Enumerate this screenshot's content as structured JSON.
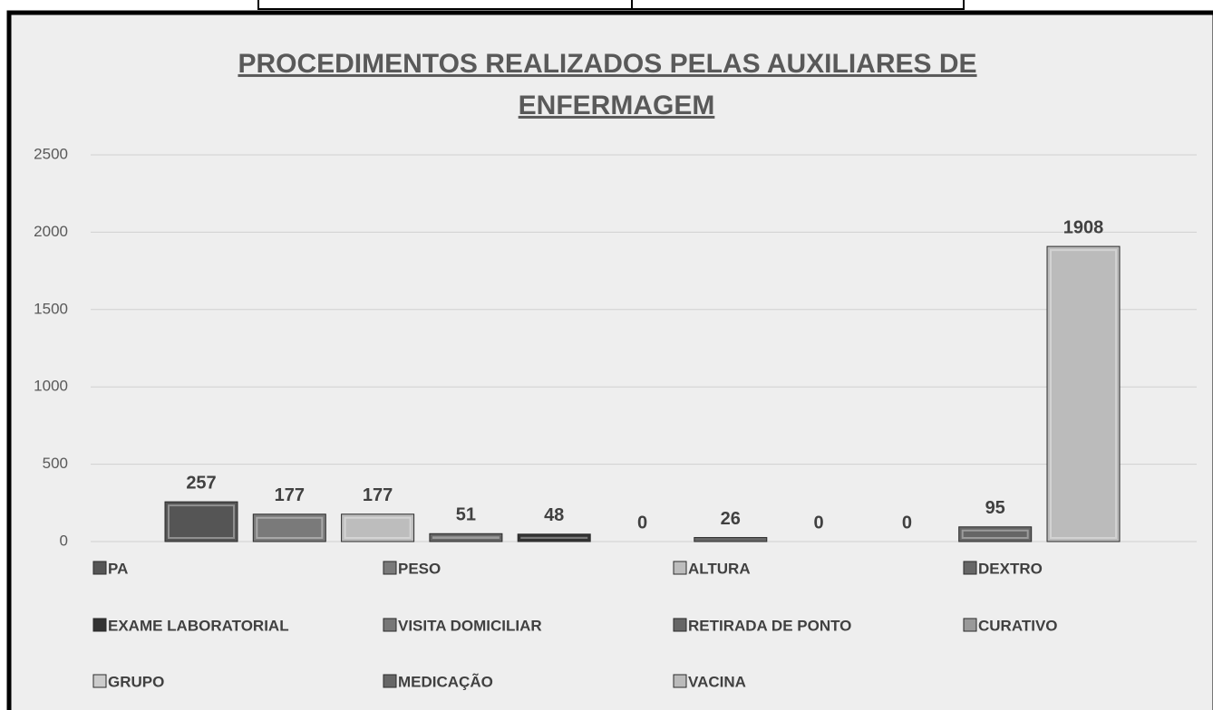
{
  "chart_data": {
    "type": "bar",
    "title": [
      "PROCEDIMENTOS REALIZADOS  PELAS AUXILIARES DE",
      "ENFERMAGEM"
    ],
    "categories": [
      null
    ],
    "series": [
      {
        "name": "PA",
        "color": "#555555",
        "values": [
          257
        ]
      },
      {
        "name": "PESO",
        "color": "#7a7a7a",
        "values": [
          177
        ]
      },
      {
        "name": "ALTURA",
        "color": "#bdbdbd",
        "values": [
          177
        ]
      },
      {
        "name": "DEXTRO",
        "color": "#666666",
        "values": [
          51
        ]
      },
      {
        "name": "EXAME LABORATORIAL",
        "color": "#333333",
        "values": [
          48
        ]
      },
      {
        "name": "VISITA DOMICILIAR",
        "color": "#777777",
        "values": [
          0
        ]
      },
      {
        "name": "RETIRADA DE PONTO",
        "color": "#666666",
        "values": [
          26
        ]
      },
      {
        "name": "CURATIVO",
        "color": "#999999",
        "values": [
          0
        ]
      },
      {
        "name": "GRUPO",
        "color": "#cccccc",
        "values": [
          0
        ]
      },
      {
        "name": "MEDICAÇÃO",
        "color": "#666666",
        "values": [
          95
        ]
      },
      {
        "name": "VACINA",
        "color": "#bbbbbb",
        "values": [
          1908
        ]
      }
    ],
    "ylim": [
      0,
      2500
    ],
    "yticks": [
      0,
      500,
      1000,
      1500,
      2000,
      2500
    ],
    "grid": true,
    "legend": "bottom"
  }
}
